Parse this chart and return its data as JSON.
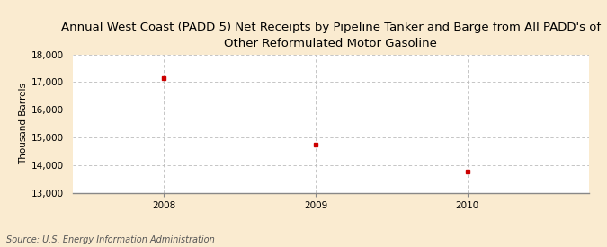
{
  "title": "Annual West Coast (PADD 5) Net Receipts by Pipeline Tanker and Barge from All PADD's of\nOther Reformulated Motor Gasoline",
  "xlabel": "",
  "ylabel": "Thousand Barrels",
  "x_values": [
    2008,
    2009,
    2010
  ],
  "y_values": [
    17150,
    14750,
    13750
  ],
  "ylim": [
    13000,
    18000
  ],
  "xlim": [
    2007.4,
    2010.8
  ],
  "yticks": [
    13000,
    14000,
    15000,
    16000,
    17000,
    18000
  ],
  "xticks": [
    2008,
    2009,
    2010
  ],
  "marker_color": "#cc0000",
  "marker": "s",
  "marker_size": 3.5,
  "background_color": "#faebd0",
  "plot_bg_color": "#ffffff",
  "grid_color": "#bbbbbb",
  "source_text": "Source: U.S. Energy Information Administration",
  "title_fontsize": 9.5,
  "axis_label_fontsize": 7.5,
  "tick_fontsize": 7.5,
  "source_fontsize": 7
}
